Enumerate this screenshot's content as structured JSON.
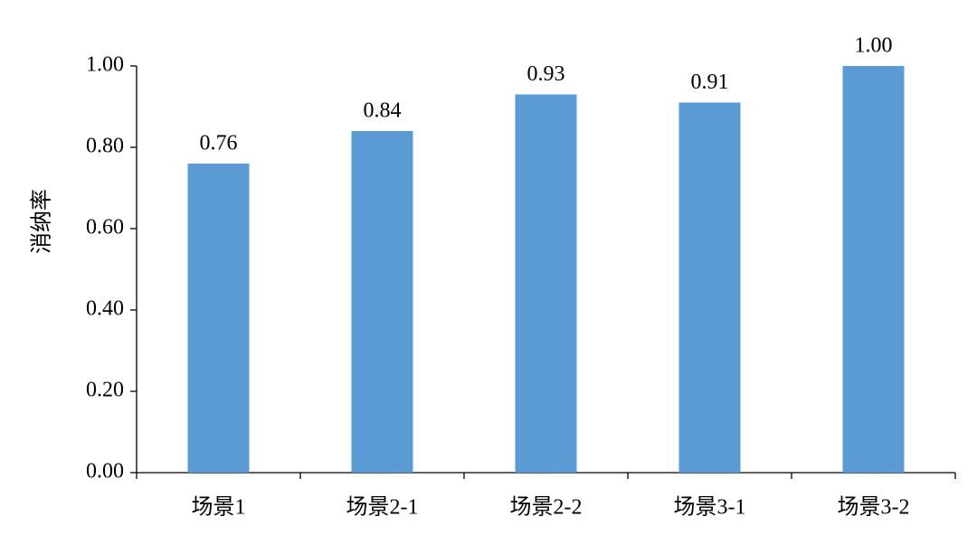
{
  "chart_data": {
    "type": "bar",
    "y_label": "消纳率",
    "categories": [
      "场景1",
      "场景2-1",
      "场景2-2",
      "场景3-1",
      "场景3-2"
    ],
    "values": [
      0.76,
      0.84,
      0.93,
      0.91,
      1.0
    ],
    "value_labels": [
      "0.76",
      "0.84",
      "0.93",
      "0.91",
      "1.00"
    ],
    "color": "#5b9bd5",
    "ylim": [
      0,
      1
    ],
    "yticks": [
      {
        "value": 0,
        "label": "0.00"
      },
      {
        "value": 0.2,
        "label": "0.20"
      },
      {
        "value": 0.4,
        "label": "0.40"
      },
      {
        "value": 0.6,
        "label": "0.60"
      },
      {
        "value": 0.8,
        "label": "0.80"
      },
      {
        "value": 1,
        "label": "1.00"
      }
    ],
    "grid": false
  }
}
